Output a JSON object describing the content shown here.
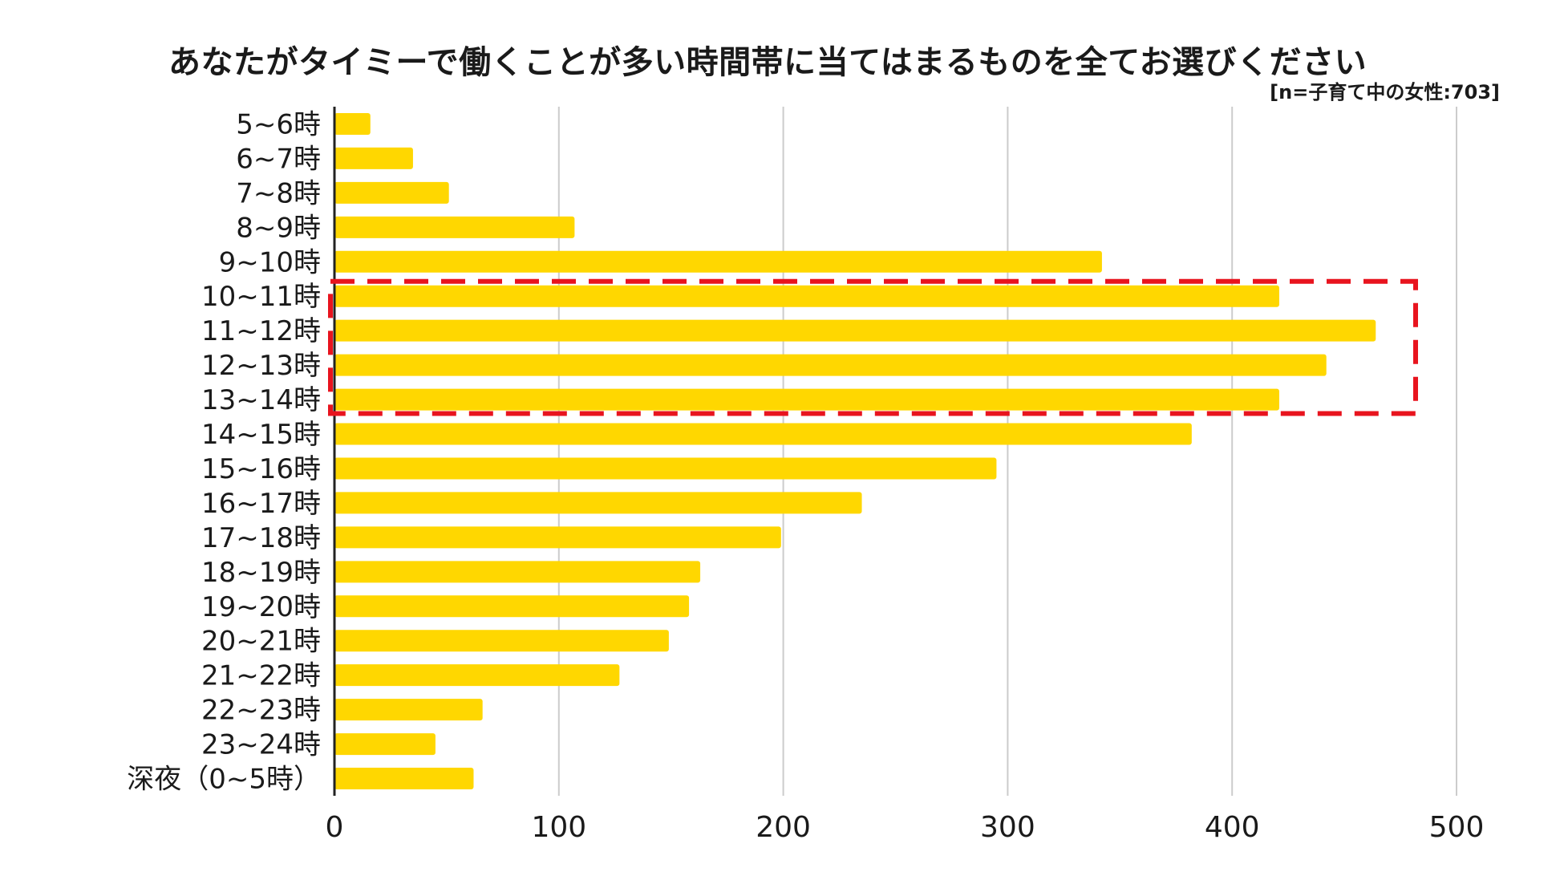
{
  "chart_data": {
    "type": "bar",
    "orientation": "horizontal",
    "title": "あなたがタイミーで働くことが多い時間帯に当てはまるものを全てお選びください",
    "note": "[n=子育て中の女性:703]",
    "categories": [
      "5~6時",
      "6~7時",
      "7~8時",
      "8~9時",
      "9~10時",
      "10~11時",
      "11~12時",
      "12~13時",
      "13~14時",
      "14~15時",
      "15~16時",
      "16~17時",
      "17~18時",
      "18~19時",
      "19~20時",
      "20~21時",
      "21~22時",
      "22~23時",
      "23~24時",
      "深夜（0~5時）"
    ],
    "values": [
      16,
      35,
      51,
      107,
      342,
      421,
      464,
      442,
      421,
      382,
      295,
      235,
      199,
      163,
      158,
      149,
      127,
      66,
      45,
      62
    ],
    "xlim": [
      0,
      500
    ],
    "xticks": [
      0,
      100,
      200,
      300,
      400,
      500
    ],
    "grid": true,
    "bar_color": "#FFD700",
    "grid_color": "#cccccc",
    "highlight": {
      "categories": [
        "10~11時",
        "11~12時",
        "12~13時",
        "13~14時"
      ],
      "color": "#e8141e",
      "style": "dashed"
    }
  }
}
